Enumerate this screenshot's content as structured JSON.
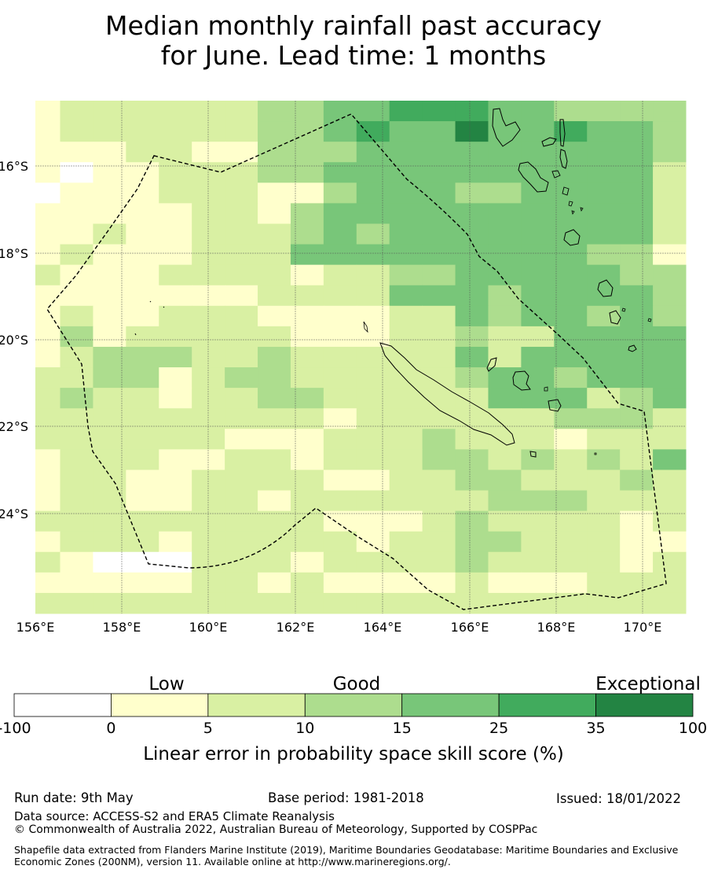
{
  "title": {
    "line1": "Median monthly rainfall past accuracy",
    "line2": "for June. Lead time: 1 months"
  },
  "map": {
    "lon_ticks": [
      "156°E",
      "158°E",
      "160°E",
      "162°E",
      "164°E",
      "166°E",
      "168°E",
      "170°E"
    ],
    "lat_ticks": [
      "16°S",
      "18°S",
      "20°S",
      "22°S",
      "24°S"
    ],
    "grid": [
      "12222223344555443333",
      "12222223345446445443",
      "11122113334444444443",
      "10112223344444444442",
      "01112221134443344442",
      "11111221344444444442",
      "11211222343444444442",
      "12111222444444444331",
      "21112222122334444433",
      "11111112222444344443",
      "12112221111224344343",
      "13122222111223224444",
      "12333223222224244444",
      "22331233222223443444",
      "23221223322222444234",
      "22222222212222223332",
      "22222211122232221222",
      "12221122122233232324",
      "12211222211223322232",
      "12211221222222333222",
      "22222222211123222212",
      "12221222221223322211",
      "21000222122223222212",
      "11111221211112111222",
      "22222222222222222222"
    ]
  },
  "colorbar": {
    "categories": [
      "Low",
      "Good",
      "Exceptional"
    ],
    "boundaries": [
      "-100",
      "0",
      "5",
      "10",
      "15",
      "25",
      "35",
      "100"
    ],
    "colors": [
      "#ffffff",
      "#ffffcc",
      "#d9f0a3",
      "#addd8e",
      "#78c679",
      "#41ab5d",
      "#238443"
    ],
    "label": "Linear error in probability space skill score (%)"
  },
  "footer": {
    "run_date": "Run date: 9th May",
    "base_period": "Base period: 1981-2018",
    "issued": "Issued: 18/01/2022",
    "data_source": "Data source: ACCESS-S2 and ERA5 Climate Reanalysis",
    "copyright": "© Commonwealth of Australia 2022, Australian Bureau of Meteorology, Supported by COSPPac",
    "shapefile": "Shapefile data extracted from Flanders Marine Institute (2019), Maritime Boundaries Geodatabase: Maritime Boundaries and Exclusive Economic Zones (200NM), version 11. Available online at http://www.marineregions.org/."
  }
}
